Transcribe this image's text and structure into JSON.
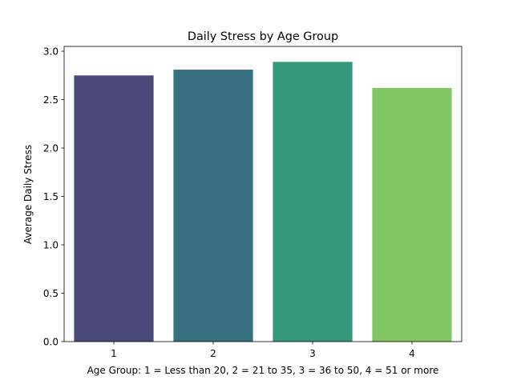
{
  "chart_data": {
    "type": "bar",
    "title": "Daily Stress by Age Group",
    "xlabel": "Age Group: 1 = Less than 20, 2 = 21 to 35, 3 = 36 to 50, 4 = 51 or more",
    "ylabel": "Average Daily Stress",
    "categories": [
      "1",
      "2",
      "3",
      "4"
    ],
    "values": [
      2.75,
      2.81,
      2.89,
      2.62
    ],
    "colors": [
      "#4a4a7a",
      "#377181",
      "#35987b",
      "#81c462"
    ],
    "ylim": [
      0,
      3.05
    ],
    "yticks": [
      0.0,
      0.5,
      1.0,
      1.5,
      2.0,
      2.5,
      3.0
    ],
    "ytick_labels": [
      "0.0",
      "0.5",
      "1.0",
      "1.5",
      "2.0",
      "2.5",
      "3.0"
    ],
    "grid": false,
    "legend": "none"
  }
}
